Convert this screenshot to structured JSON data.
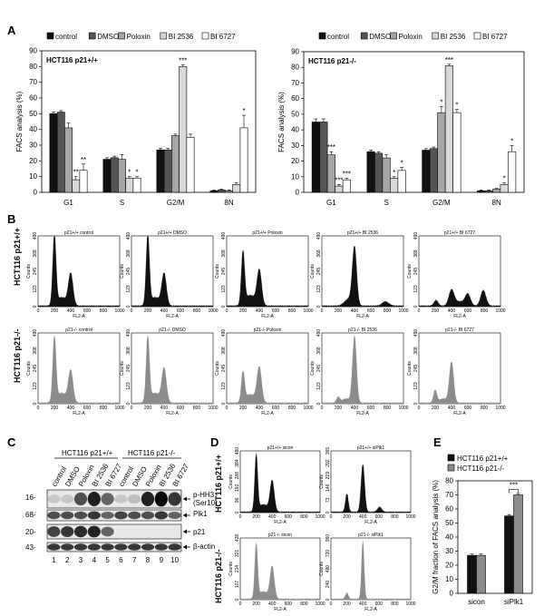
{
  "panels": {
    "A": "A",
    "B": "B",
    "C": "C",
    "D": "D",
    "E": "E"
  },
  "legend_a": [
    "control",
    "DMSO",
    "Poloxin",
    "BI 2536",
    "BI 6727"
  ],
  "colors": {
    "control": "#111111",
    "DMSO": "#555555",
    "Poloxin": "#a6a6a6",
    "BI 2536": "#d9d9d9",
    "BI 6727": "#ffffff",
    "hist_black": "#111111",
    "hist_gray": "#8c8c8c"
  },
  "chart_data": [
    {
      "type": "bar",
      "panel": "A-left",
      "inner_title": "HCT116 p21+/+",
      "ylabel": "FACS analysis (%)",
      "categories": [
        "G1",
        "S",
        "G2/M",
        "8N"
      ],
      "ylim": [
        0,
        90
      ],
      "yticks": [
        "0",
        "10",
        "20",
        "30",
        "40",
        "50",
        "60",
        "70",
        "80",
        "90"
      ],
      "series": [
        {
          "name": "control",
          "values": [
            50,
            21,
            27,
            1
          ],
          "errors": [
            1,
            1,
            1,
            0.5
          ]
        },
        {
          "name": "DMSO",
          "values": [
            51,
            22,
            27,
            1.5
          ],
          "errors": [
            1,
            1,
            1,
            0.5
          ]
        },
        {
          "name": "Poloxin",
          "values": [
            41,
            21,
            36,
            1
          ],
          "errors": [
            3,
            3,
            1,
            0.5
          ]
        },
        {
          "name": "BI 2536",
          "values": [
            8,
            9,
            80,
            5
          ],
          "errors": [
            2,
            1,
            1,
            1
          ]
        },
        {
          "name": "BI 6727",
          "values": [
            14,
            9,
            35,
            41
          ],
          "errors": [
            4,
            1,
            2,
            8
          ]
        }
      ],
      "annotations": [
        {
          "category": "G1",
          "series": "BI 2536",
          "text": "**"
        },
        {
          "category": "G1",
          "series": "BI 6727",
          "text": "**"
        },
        {
          "category": "S",
          "series": "BI 2536",
          "text": "*"
        },
        {
          "category": "S",
          "series": "BI 6727",
          "text": "*"
        },
        {
          "category": "G2/M",
          "series": "BI 2536",
          "text": "***"
        },
        {
          "category": "8N",
          "series": "BI 6727",
          "text": "*"
        }
      ]
    },
    {
      "type": "bar",
      "panel": "A-right",
      "inner_title": "HCT116 p21-/-",
      "ylabel": "FACS analysis (%)",
      "categories": [
        "G1",
        "S",
        "G2/M",
        "8N"
      ],
      "ylim": [
        0,
        90
      ],
      "yticks": [
        "0",
        "10",
        "20",
        "30",
        "40",
        "50",
        "60",
        "70",
        "80",
        "90"
      ],
      "series": [
        {
          "name": "control",
          "values": [
            45,
            26,
            27,
            1
          ],
          "errors": [
            2,
            1,
            1,
            0.5
          ]
        },
        {
          "name": "DMSO",
          "values": [
            45,
            25,
            28,
            1
          ],
          "errors": [
            2,
            1,
            1,
            0.5
          ]
        },
        {
          "name": "Poloxin",
          "values": [
            24,
            22,
            51,
            2
          ],
          "errors": [
            2,
            2,
            4,
            0.5
          ]
        },
        {
          "name": "BI 2536",
          "values": [
            4,
            9,
            81,
            5
          ],
          "errors": [
            1,
            1,
            1,
            1
          ]
        },
        {
          "name": "BI 6727",
          "values": [
            8,
            14,
            51,
            26
          ],
          "errors": [
            1,
            2,
            2,
            4
          ]
        }
      ],
      "annotations": [
        {
          "category": "G1",
          "series": "Poloxin",
          "text": "***"
        },
        {
          "category": "G1",
          "series": "BI 2536",
          "text": "***"
        },
        {
          "category": "G1",
          "series": "BI 6727",
          "text": "***"
        },
        {
          "category": "S",
          "series": "BI 2536",
          "text": "*"
        },
        {
          "category": "S",
          "series": "BI 6727",
          "text": "*"
        },
        {
          "category": "G2/M",
          "series": "Poloxin",
          "text": "*"
        },
        {
          "category": "G2/M",
          "series": "BI 2536",
          "text": "***"
        },
        {
          "category": "G2/M",
          "series": "BI 6727",
          "text": "*"
        },
        {
          "category": "8N",
          "series": "BI 2536",
          "text": "*"
        },
        {
          "category": "8N",
          "series": "BI 6727",
          "text": "*"
        }
      ]
    },
    {
      "type": "bar",
      "panel": "E",
      "ylabel": "G2/M fraction of FACS analysis (%)",
      "categories": [
        "sicon",
        "siPlk1"
      ],
      "ylim": [
        0,
        80
      ],
      "yticks": [
        "0",
        "10",
        "20",
        "30",
        "40",
        "50",
        "60",
        "70",
        "80"
      ],
      "series": [
        {
          "name": "HCT116 p21+/+",
          "values": [
            27,
            55
          ],
          "errors": [
            1,
            1
          ]
        },
        {
          "name": "HCT116 p21-/-",
          "values": [
            27,
            70
          ],
          "errors": [
            1,
            1
          ]
        }
      ],
      "annotations": [
        {
          "category": "siPlk1",
          "text": "***"
        }
      ]
    }
  ],
  "panel_b": {
    "row_labels": [
      "HCT116 p21+/+",
      "HCT116 p21-/-"
    ],
    "titles_top": [
      "p21+/+ control",
      "p21+/+ DMSO",
      "p21+/+ Poloxin",
      "p21+/+ BI 2536",
      "p21+/+ BI 6727"
    ],
    "titles_bottom": [
      "p21-/- control",
      "p21-/- DMSO",
      "p21-/- Poloxin",
      "p21-/- BI 2536",
      "p21-/- BI 6727"
    ],
    "ylabel": "Counts",
    "xlabel": "FL2-A",
    "xticks": [
      "0",
      "200",
      "400",
      "600",
      "800",
      "1000"
    ],
    "yticks_top": [
      "0",
      "123",
      "245",
      "368",
      "490"
    ],
    "yticks_bottom": [
      "0",
      "123",
      "245",
      "368",
      "490"
    ],
    "profiles": [
      [
        {
          "c": 200,
          "h": 1.0,
          "w": 20
        },
        {
          "c": 400,
          "h": 0.45,
          "w": 28
        },
        {
          "c": 290,
          "h": 0.12,
          "w": 60
        }
      ],
      [
        {
          "c": 200,
          "h": 1.0,
          "w": 20
        },
        {
          "c": 400,
          "h": 0.45,
          "w": 28
        },
        {
          "c": 290,
          "h": 0.12,
          "w": 60
        }
      ],
      [
        {
          "c": 200,
          "h": 0.75,
          "w": 20
        },
        {
          "c": 400,
          "h": 0.5,
          "w": 28
        },
        {
          "c": 290,
          "h": 0.15,
          "w": 60
        }
      ],
      [
        {
          "c": 400,
          "h": 0.82,
          "w": 26
        },
        {
          "c": 330,
          "h": 0.1,
          "w": 50
        },
        {
          "c": 780,
          "h": 0.06,
          "w": 40
        }
      ],
      [
        {
          "c": 400,
          "h": 0.22,
          "w": 32
        },
        {
          "c": 600,
          "h": 0.16,
          "w": 32
        },
        {
          "c": 790,
          "h": 0.22,
          "w": 32
        },
        {
          "c": 210,
          "h": 0.08,
          "w": 25
        },
        {
          "c": 500,
          "h": 0.06,
          "w": 60
        }
      ]
    ],
    "profiles_bottom": [
      [
        {
          "c": 200,
          "h": 0.92,
          "w": 20
        },
        {
          "c": 400,
          "h": 0.45,
          "w": 28
        },
        {
          "c": 290,
          "h": 0.14,
          "w": 60
        }
      ],
      [
        {
          "c": 200,
          "h": 0.92,
          "w": 20
        },
        {
          "c": 400,
          "h": 0.48,
          "w": 28
        },
        {
          "c": 290,
          "h": 0.14,
          "w": 60
        }
      ],
      [
        {
          "c": 200,
          "h": 0.42,
          "w": 20
        },
        {
          "c": 400,
          "h": 0.5,
          "w": 28
        },
        {
          "c": 290,
          "h": 0.12,
          "w": 60
        }
      ],
      [
        {
          "c": 400,
          "h": 0.95,
          "w": 24
        },
        {
          "c": 200,
          "h": 0.08,
          "w": 20
        },
        {
          "c": 300,
          "h": 0.06,
          "w": 50
        }
      ],
      [
        {
          "c": 400,
          "h": 0.58,
          "w": 26
        },
        {
          "c": 200,
          "h": 0.18,
          "w": 20
        },
        {
          "c": 300,
          "h": 0.06,
          "w": 50
        }
      ]
    ]
  },
  "panel_d": {
    "row_labels": [
      "HCT116 p21+/+",
      "HCT116 p21-/-"
    ],
    "titles": [
      "p21+/+ sicon",
      "p21+/+ siPlk1",
      "p21-/- sicon",
      "p21-/- siPlk1"
    ],
    "ylabel": "Counts",
    "xlabel": "FL2-A",
    "xticks": [
      "0",
      "200",
      "400",
      "600",
      "800",
      "1000"
    ],
    "yticks": [
      "0",
      "96",
      "192",
      "288",
      "384",
      "480"
    ],
    "yticks_tr": [
      "0",
      "73",
      "146",
      "219",
      "292",
      "365"
    ],
    "yticks_bl": [
      "0",
      "107",
      "214",
      "321",
      "428"
    ],
    "yticks_br": [
      "0",
      "240",
      "480",
      "720",
      "960"
    ],
    "profiles": [
      [
        {
          "c": 200,
          "h": 0.92,
          "w": 18
        },
        {
          "c": 400,
          "h": 0.5,
          "w": 26
        },
        {
          "c": 290,
          "h": 0.12,
          "w": 60
        }
      ],
      [
        {
          "c": 400,
          "h": 0.78,
          "w": 22
        },
        {
          "c": 200,
          "h": 0.3,
          "w": 18
        },
        {
          "c": 610,
          "h": 0.08,
          "w": 25
        }
      ],
      [
        {
          "c": 200,
          "h": 0.88,
          "w": 18
        },
        {
          "c": 400,
          "h": 0.52,
          "w": 26
        },
        {
          "c": 290,
          "h": 0.12,
          "w": 60
        }
      ],
      [
        {
          "c": 400,
          "h": 0.95,
          "w": 16
        },
        {
          "c": 200,
          "h": 0.1,
          "w": 18
        }
      ]
    ]
  },
  "panel_c": {
    "group_labels": [
      "HCT116 p21+/+",
      "HCT116 p21-/-"
    ],
    "lane_labels": [
      "control",
      "DMSO",
      "Poloxin",
      "BI 2536",
      "BI 6727",
      "control",
      "DMSO",
      "Poloxin",
      "BI 2536",
      "BI 6727"
    ],
    "lane_numbers": [
      "1",
      "2",
      "3",
      "4",
      "5",
      "6",
      "7",
      "8",
      "9",
      "10"
    ],
    "markers": [
      "16-",
      "68-",
      "20-",
      "43-"
    ],
    "bands": [
      "p-HH3\n(Ser10)",
      "Plk1",
      "p21",
      "β-actin"
    ],
    "band_labels": [
      "p-HH3",
      "(Ser10)",
      "Plk1",
      "p21",
      "β-actin"
    ],
    "intensities": {
      "phh3": [
        0.15,
        0.15,
        0.7,
        0.9,
        0.6,
        0.15,
        0.2,
        0.9,
        1.0,
        0.8
      ],
      "plk1": [
        0.7,
        0.7,
        0.7,
        0.8,
        0.6,
        0.75,
        0.7,
        0.7,
        0.8,
        0.6
      ],
      "p21": [
        0.75,
        0.8,
        0.85,
        0.9,
        0.6,
        0.0,
        0.0,
        0.0,
        0.0,
        0.0
      ],
      "actin": [
        0.8,
        0.8,
        0.8,
        0.8,
        0.8,
        0.8,
        0.8,
        0.8,
        0.8,
        0.8
      ]
    }
  }
}
